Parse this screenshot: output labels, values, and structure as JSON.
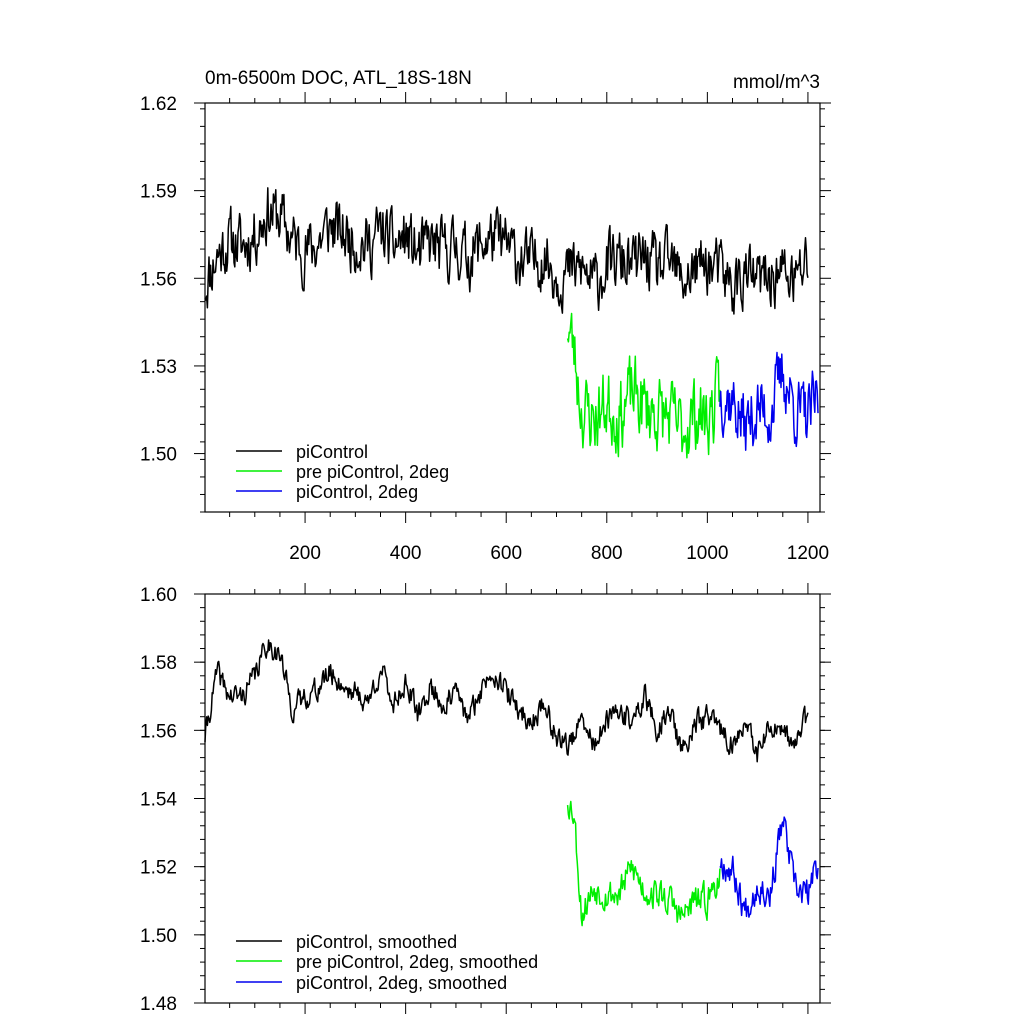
{
  "chart_data": [
    {
      "type": "line",
      "title": "0m-6500m DOC, ATL_18S-18N",
      "units": "mmol/m^3",
      "xlim": [
        1,
        1224
      ],
      "ylim": [
        1.48,
        1.62
      ],
      "x_ticks": [
        200,
        400,
        600,
        800,
        1000,
        1200
      ],
      "x_tick_labels": [
        "200",
        "400",
        "600",
        "800",
        "1000",
        "1200"
      ],
      "y_ticks": [
        1.5,
        1.53,
        1.56,
        1.59,
        1.62
      ],
      "y_tick_labels": [
        "1.50",
        "1.53",
        "1.56",
        "1.59",
        "1.62"
      ],
      "legend_position": "bottom-left",
      "series": [
        {
          "name": "piControl",
          "color": "#000000",
          "x": [
            1,
            25,
            50,
            75,
            100,
            125,
            150,
            175,
            200,
            225,
            250,
            275,
            300,
            325,
            350,
            375,
            400,
            425,
            450,
            475,
            500,
            525,
            550,
            575,
            600,
            625,
            650,
            675,
            700,
            725,
            750,
            775,
            800,
            825,
            850,
            875,
            900,
            925,
            950,
            975,
            1000,
            1025,
            1050,
            1075,
            1100,
            1125,
            1150,
            1175,
            1200
          ],
          "values": [
            1.558,
            1.568,
            1.573,
            1.571,
            1.575,
            1.583,
            1.581,
            1.573,
            1.569,
            1.572,
            1.578,
            1.575,
            1.573,
            1.571,
            1.576,
            1.571,
            1.574,
            1.568,
            1.572,
            1.569,
            1.571,
            1.567,
            1.572,
            1.574,
            1.571,
            1.567,
            1.565,
            1.568,
            1.561,
            1.562,
            1.563,
            1.558,
            1.564,
            1.566,
            1.564,
            1.567,
            1.563,
            1.565,
            1.559,
            1.563,
            1.565,
            1.562,
            1.557,
            1.561,
            1.559,
            1.56,
            1.562,
            1.559,
            1.566
          ],
          "noise": 0.009,
          "seed": 11
        },
        {
          "name": "pre piControl, 2deg",
          "color": "#00ee00",
          "x": [
            722,
            735,
            750,
            775,
            800,
            825,
            850,
            875,
            900,
            925,
            950,
            975,
            1000,
            1025
          ],
          "values": [
            1.545,
            1.535,
            1.515,
            1.512,
            1.517,
            1.513,
            1.521,
            1.516,
            1.514,
            1.512,
            1.508,
            1.514,
            1.512,
            1.519
          ],
          "noise": 0.011,
          "seed": 23
        },
        {
          "name": "piControl, 2deg",
          "color": "#0000ee",
          "x": [
            1025,
            1050,
            1075,
            1100,
            1125,
            1150,
            1175,
            1200,
            1220
          ],
          "values": [
            1.521,
            1.518,
            1.509,
            1.515,
            1.514,
            1.528,
            1.515,
            1.512,
            1.519
          ],
          "noise": 0.01,
          "seed": 37
        }
      ]
    },
    {
      "type": "line",
      "xlim": [
        1,
        1224
      ],
      "ylim": [
        1.48,
        1.6
      ],
      "x_ticks": [
        200,
        400,
        600,
        800,
        1000,
        1200
      ],
      "y_ticks": [
        1.48,
        1.5,
        1.52,
        1.54,
        1.56,
        1.58,
        1.6
      ],
      "y_tick_labels": [
        "1.48",
        "1.50",
        "1.52",
        "1.54",
        "1.56",
        "1.58",
        "1.60"
      ],
      "legend_position": "bottom-left",
      "series": [
        {
          "name": "piControl, smoothed",
          "color": "#000000",
          "x": [
            1,
            25,
            50,
            75,
            100,
            125,
            150,
            175,
            200,
            225,
            250,
            275,
            300,
            325,
            350,
            375,
            400,
            425,
            450,
            475,
            500,
            525,
            550,
            575,
            600,
            625,
            650,
            675,
            700,
            725,
            750,
            775,
            800,
            825,
            850,
            875,
            900,
            925,
            950,
            975,
            1000,
            1025,
            1050,
            1075,
            1100,
            1125,
            1150,
            1175,
            1200
          ],
          "values": [
            1.558,
            1.577,
            1.57,
            1.57,
            1.576,
            1.586,
            1.582,
            1.566,
            1.57,
            1.572,
            1.577,
            1.573,
            1.571,
            1.568,
            1.578,
            1.568,
            1.574,
            1.564,
            1.573,
            1.567,
            1.571,
            1.563,
            1.572,
            1.578,
            1.571,
            1.566,
            1.562,
            1.568,
            1.558,
            1.556,
            1.562,
            1.556,
            1.562,
            1.566,
            1.562,
            1.57,
            1.56,
            1.566,
            1.553,
            1.562,
            1.564,
            1.56,
            1.556,
            1.561,
            1.553,
            1.561,
            1.558,
            1.556,
            1.565
          ],
          "noise": 0.003,
          "seed": 41
        },
        {
          "name": "pre piControl, 2deg, smoothed",
          "color": "#00ee00",
          "x": [
            722,
            735,
            750,
            775,
            800,
            825,
            850,
            875,
            900,
            925,
            950,
            975,
            1000,
            1025
          ],
          "values": [
            1.54,
            1.536,
            1.506,
            1.514,
            1.512,
            1.512,
            1.52,
            1.513,
            1.512,
            1.51,
            1.505,
            1.51,
            1.51,
            1.518
          ],
          "noise": 0.004,
          "seed": 53
        },
        {
          "name": "piControl, 2deg, smoothed",
          "color": "#0000ee",
          "x": [
            1025,
            1050,
            1075,
            1100,
            1125,
            1150,
            1175,
            1200,
            1220
          ],
          "values": [
            1.522,
            1.519,
            1.507,
            1.515,
            1.512,
            1.534,
            1.513,
            1.512,
            1.521
          ],
          "noise": 0.004,
          "seed": 67
        }
      ]
    }
  ]
}
